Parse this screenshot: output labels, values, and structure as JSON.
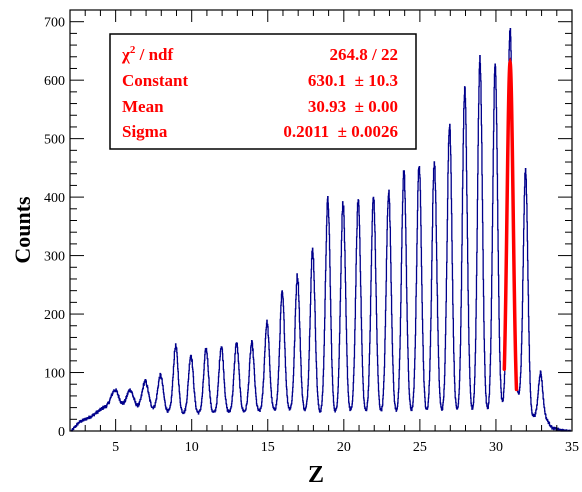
{
  "chart_data": {
    "type": "line",
    "xlabel": "Z",
    "ylabel": "Counts",
    "xlim": [
      2.0,
      35.0
    ],
    "ylim": [
      0,
      720
    ],
    "xticks": [
      5,
      10,
      15,
      20,
      25,
      30,
      35
    ],
    "yticks": [
      0,
      100,
      200,
      300,
      400,
      500,
      600,
      700
    ],
    "grid": false,
    "histogram": {
      "name": "",
      "color": "#00008b",
      "baseline": [
        [
          2.1,
          0
        ],
        [
          2.6,
          15
        ],
        [
          3.4,
          25
        ],
        [
          4.2,
          40
        ],
        [
          5.1,
          42
        ],
        [
          6.2,
          40
        ],
        [
          7.3,
          38
        ],
        [
          8.4,
          32
        ],
        [
          9.6,
          30
        ],
        [
          10.6,
          30
        ],
        [
          11.7,
          30
        ],
        [
          12.8,
          32
        ],
        [
          13.8,
          32
        ],
        [
          14.9,
          33
        ],
        [
          15.9,
          35
        ],
        [
          17.0,
          35
        ],
        [
          18.0,
          30
        ],
        [
          19.0,
          28
        ],
        [
          20.1,
          30
        ],
        [
          21.1,
          30
        ],
        [
          22.1,
          30
        ],
        [
          23.1,
          30
        ],
        [
          24.1,
          30
        ],
        [
          25.1,
          30
        ],
        [
          26.1,
          30
        ],
        [
          27.1,
          30
        ],
        [
          28.1,
          30
        ],
        [
          29.1,
          30
        ],
        [
          30.1,
          30
        ],
        [
          31.1,
          60
        ],
        [
          31.8,
          60
        ],
        [
          32.3,
          25
        ],
        [
          33.2,
          25
        ],
        [
          33.7,
          5
        ],
        [
          34.5,
          0
        ]
      ],
      "peaks": [
        {
          "z": 4.95,
          "height": 70,
          "sigma": 0.25
        },
        {
          "z": 5.95,
          "height": 70,
          "sigma": 0.22
        },
        {
          "z": 6.95,
          "height": 85,
          "sigma": 0.2
        },
        {
          "z": 7.95,
          "height": 95,
          "sigma": 0.18
        },
        {
          "z": 8.95,
          "height": 145,
          "sigma": 0.16
        },
        {
          "z": 9.95,
          "height": 130,
          "sigma": 0.16
        },
        {
          "z": 10.95,
          "height": 140,
          "sigma": 0.16
        },
        {
          "z": 11.95,
          "height": 145,
          "sigma": 0.16
        },
        {
          "z": 12.95,
          "height": 150,
          "sigma": 0.16
        },
        {
          "z": 13.95,
          "height": 150,
          "sigma": 0.16
        },
        {
          "z": 14.95,
          "height": 185,
          "sigma": 0.16
        },
        {
          "z": 15.95,
          "height": 235,
          "sigma": 0.16
        },
        {
          "z": 16.95,
          "height": 265,
          "sigma": 0.16
        },
        {
          "z": 17.95,
          "height": 310,
          "sigma": 0.16
        },
        {
          "z": 18.95,
          "height": 395,
          "sigma": 0.16
        },
        {
          "z": 19.95,
          "height": 390,
          "sigma": 0.16
        },
        {
          "z": 20.95,
          "height": 395,
          "sigma": 0.16
        },
        {
          "z": 21.95,
          "height": 400,
          "sigma": 0.16
        },
        {
          "z": 22.95,
          "height": 410,
          "sigma": 0.16
        },
        {
          "z": 23.95,
          "height": 445,
          "sigma": 0.16
        },
        {
          "z": 24.95,
          "height": 455,
          "sigma": 0.16
        },
        {
          "z": 25.95,
          "height": 460,
          "sigma": 0.16
        },
        {
          "z": 26.95,
          "height": 525,
          "sigma": 0.16
        },
        {
          "z": 27.95,
          "height": 585,
          "sigma": 0.16
        },
        {
          "z": 28.95,
          "height": 635,
          "sigma": 0.16
        },
        {
          "z": 29.95,
          "height": 625,
          "sigma": 0.16
        },
        {
          "z": 30.93,
          "height": 690,
          "sigma": 0.16
        },
        {
          "z": 31.95,
          "height": 445,
          "sigma": 0.15
        },
        {
          "z": 32.93,
          "height": 100,
          "sigma": 0.14
        }
      ]
    },
    "fit": {
      "color": "#ff0000",
      "constant": 630.1,
      "mean": 30.93,
      "sigma": 0.2011,
      "range": [
        30.55,
        31.35
      ]
    },
    "stats_box": {
      "rows": [
        {
          "label_prefix": "χ",
          "label_sup": "2",
          "label_suffix": " / ndf",
          "value": "264.8 / 22"
        },
        {
          "label": "Constant",
          "value": "630.1  ± 10.3"
        },
        {
          "label": "Mean",
          "value": "30.93  ± 0.00"
        },
        {
          "label": "Sigma",
          "value": "0.2011  ± 0.0026"
        }
      ]
    }
  }
}
